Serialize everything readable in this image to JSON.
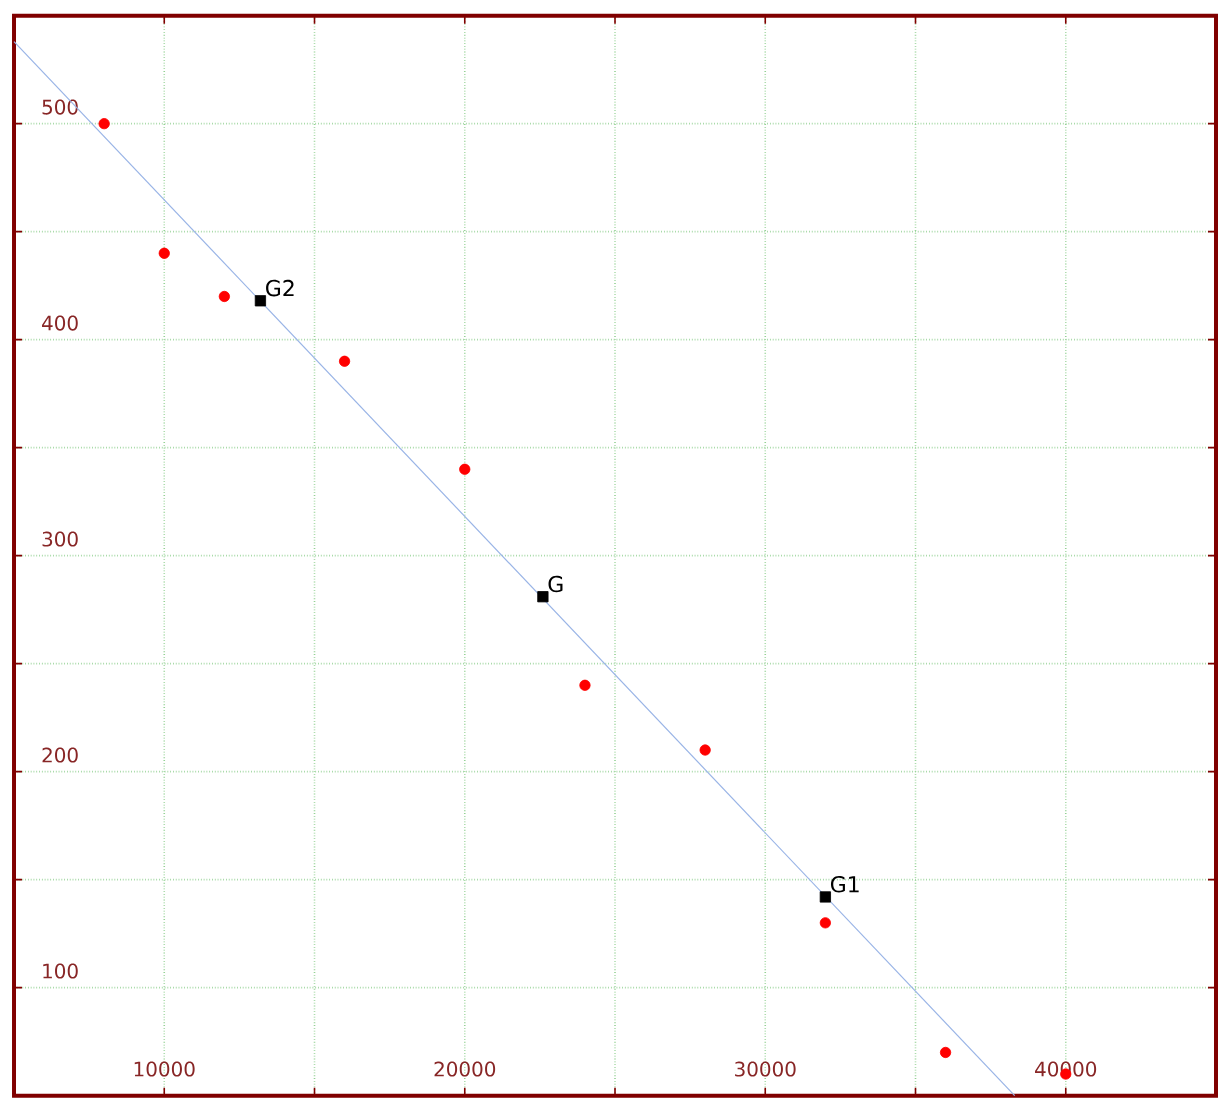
{
  "chart_data": {
    "type": "scatter",
    "xlim": [
      5000,
      45000
    ],
    "ylim": [
      50,
      550
    ],
    "xticks": [
      {
        "value": 5000,
        "label": null
      },
      10000,
      {
        "value": 15000,
        "label": null
      },
      20000,
      {
        "value": 25000,
        "label": null
      },
      30000,
      {
        "value": 35000,
        "label": null
      },
      40000,
      {
        "value": 45000,
        "label": null
      }
    ],
    "yticks": [
      {
        "value": 50,
        "label": null
      },
      100,
      {
        "value": 150,
        "label": null
      },
      200,
      {
        "value": 250,
        "label": null
      },
      300,
      {
        "value": 350,
        "label": null
      },
      400,
      {
        "value": 450,
        "label": null
      },
      500,
      {
        "value": 550,
        "label": null
      }
    ],
    "grid": true,
    "series": [
      {
        "type": "line",
        "color": "#99b4e6",
        "x": [
          5000,
          38300
        ],
        "values": [
          538,
          50
        ],
        "marker": "none",
        "line_style": "solid"
      },
      {
        "color": "#ff0000",
        "marker": "circle",
        "x": [
          8000,
          10000,
          12000,
          16000,
          20000,
          24000,
          28000,
          32000,
          36000,
          40000
        ],
        "values": [
          500,
          440,
          420,
          390,
          340,
          240,
          210,
          130,
          70,
          60
        ]
      },
      {
        "color": "#000000",
        "marker": "square",
        "x": [
          13200,
          22600,
          32000
        ],
        "values": [
          418,
          281,
          142
        ]
      }
    ],
    "annotations": [
      {
        "text": "G2",
        "x": 13200,
        "y": 418
      },
      {
        "text": "G",
        "x": 22600,
        "y": 281
      },
      {
        "text": "G1",
        "x": 32000,
        "y": 142
      }
    ]
  }
}
